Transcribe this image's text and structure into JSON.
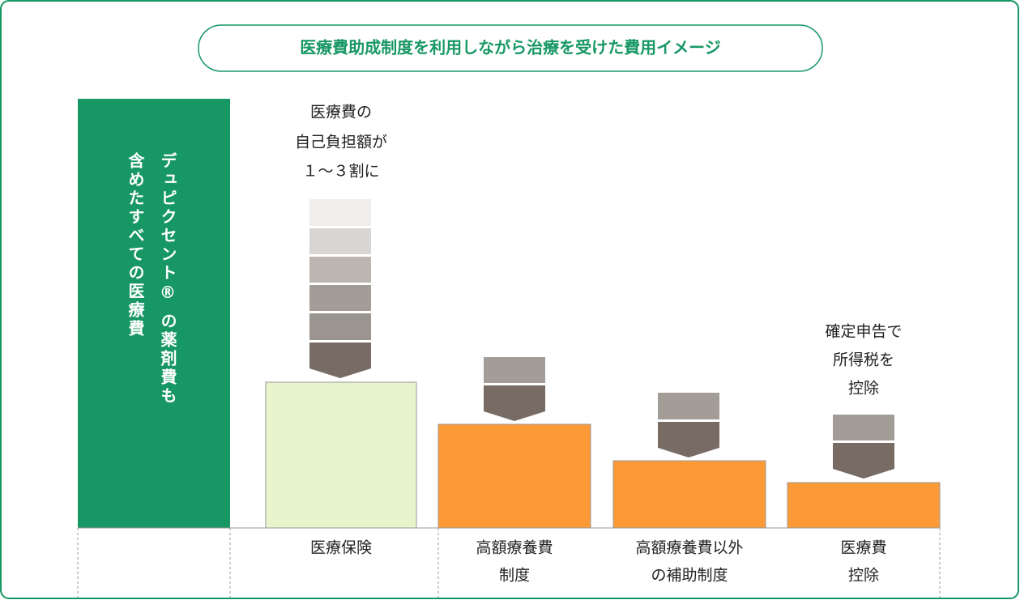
{
  "title": "医療費助成制度を利用しながら治療を受けた費用イメージ",
  "sidebar": {
    "lines": [
      "デュピクセント® の薬剤費も",
      "含めたすべての医療費"
    ]
  },
  "annotations": [
    {
      "lines": [
        "医療費の",
        "自己負担額が",
        "１～３割に"
      ]
    },
    {
      "lines": [
        "確定申告で",
        "所得税を",
        "控除"
      ]
    }
  ],
  "columns": [
    {
      "label": [
        "医療保険"
      ]
    },
    {
      "label": [
        "高額療養費",
        "制度"
      ]
    },
    {
      "label": [
        "高額療養費以外",
        "の補助制度"
      ]
    },
    {
      "label": [
        "医療費",
        "控除"
      ]
    }
  ]
}
